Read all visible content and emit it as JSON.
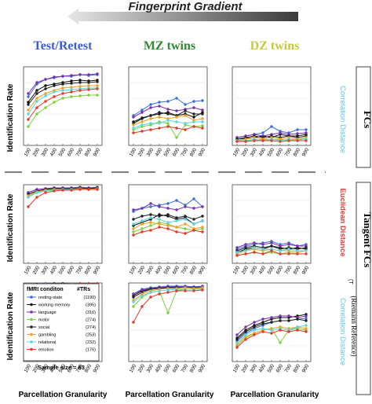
{
  "header": {
    "gradient_title": "Fingerprint Gradient",
    "gradient_color_dark": "#3a3a3a",
    "gradient_color_light": "#e6e6e6"
  },
  "column_titles": [
    {
      "text": "Test/Retest",
      "color": "#3b5bd6"
    },
    {
      "text": "MZ twins",
      "color": "#2f8a2f"
    },
    {
      "text": "DZ twins",
      "color": "#c8c83a"
    }
  ],
  "row_labels": {
    "ylabel": "Identification Rate",
    "xlabel": "Parcellation Granularity"
  },
  "side_labels": {
    "fcs": "FCs",
    "tangent_fcs": "Tangent FCs",
    "riemann": "(Riemann Reference)",
    "correlation_distance_1": "Correlation Distance",
    "correlation_distance_1_color": "#5bc8e8",
    "euclidean_distance": "Euclidean Distance",
    "euclidean_sub": "(T",
    "euclidean_color": "#e23c3c",
    "correlation_distance_3": "Correlation Distance",
    "correlation_distance_3_color": "#5bc8e8"
  },
  "legend": {
    "title_left": "fMRI conditon",
    "title_right": "#TRs",
    "footer": "Sample size = 63",
    "items": [
      {
        "label": "resting-state",
        "trs": "(1190)",
        "color": "#3a6fd8",
        "marker": "circle"
      },
      {
        "label": "working memory",
        "trs": "(395)",
        "color": "#111111",
        "marker": "circle"
      },
      {
        "label": "language",
        "trs": "(316)",
        "color": "#7a2fb0",
        "marker": "circle"
      },
      {
        "label": "motor",
        "trs": "(274)",
        "color": "#7bd13a",
        "marker": "circle"
      },
      {
        "label": "social",
        "trs": "(274)",
        "color": "#222222",
        "marker": "circle"
      },
      {
        "label": "gambling",
        "trs": "(253)",
        "color": "#f0a020",
        "marker": "circle"
      },
      {
        "label": "relational",
        "trs": "(232)",
        "color": "#5bd3e0",
        "marker": "circle"
      },
      {
        "label": "emotion",
        "trs": "(176)",
        "color": "#e03a2a",
        "marker": "circle"
      }
    ]
  },
  "chart_data": {
    "type": "line",
    "x": [
      100,
      200,
      300,
      400,
      500,
      600,
      700,
      800,
      900
    ],
    "ylim": [
      0,
      1
    ],
    "panels": [
      {
        "row": 0,
        "col": 0,
        "series": [
          [
            0.62,
            0.78,
            0.84,
            0.86,
            0.88,
            0.88,
            0.9,
            0.89,
            0.9
          ],
          [
            0.55,
            0.7,
            0.76,
            0.78,
            0.8,
            0.82,
            0.83,
            0.82,
            0.83
          ],
          [
            0.66,
            0.8,
            0.84,
            0.87,
            0.88,
            0.89,
            0.9,
            0.9,
            0.91
          ],
          [
            0.24,
            0.4,
            0.48,
            0.55,
            0.6,
            0.62,
            0.63,
            0.64,
            0.64
          ],
          [
            0.52,
            0.66,
            0.72,
            0.76,
            0.78,
            0.79,
            0.8,
            0.8,
            0.81
          ],
          [
            0.45,
            0.6,
            0.66,
            0.7,
            0.73,
            0.74,
            0.75,
            0.76,
            0.76
          ],
          [
            0.4,
            0.56,
            0.63,
            0.68,
            0.7,
            0.71,
            0.72,
            0.73,
            0.73
          ],
          [
            0.33,
            0.48,
            0.56,
            0.62,
            0.66,
            0.68,
            0.7,
            0.71,
            0.72
          ]
        ]
      },
      {
        "row": 0,
        "col": 1,
        "series": [
          [
            0.38,
            0.45,
            0.52,
            0.55,
            0.56,
            0.6,
            0.52,
            0.56,
            0.57
          ],
          [
            0.3,
            0.35,
            0.38,
            0.4,
            0.42,
            0.38,
            0.4,
            0.36,
            0.42
          ],
          [
            0.36,
            0.42,
            0.48,
            0.5,
            0.46,
            0.44,
            0.46,
            0.48,
            0.45
          ],
          [
            0.2,
            0.24,
            0.26,
            0.3,
            0.28,
            0.1,
            0.26,
            0.24,
            0.25
          ],
          [
            0.28,
            0.34,
            0.38,
            0.42,
            0.4,
            0.38,
            0.44,
            0.4,
            0.4
          ],
          [
            0.26,
            0.3,
            0.34,
            0.36,
            0.34,
            0.36,
            0.38,
            0.32,
            0.34
          ],
          [
            0.22,
            0.26,
            0.28,
            0.28,
            0.32,
            0.3,
            0.28,
            0.3,
            0.3
          ],
          [
            0.16,
            0.18,
            0.2,
            0.22,
            0.24,
            0.22,
            0.2,
            0.24,
            0.22
          ]
        ]
      },
      {
        "row": 0,
        "col": 2,
        "series": [
          [
            0.1,
            0.12,
            0.14,
            0.16,
            0.24,
            0.18,
            0.16,
            0.2,
            0.2
          ],
          [
            0.08,
            0.09,
            0.1,
            0.12,
            0.1,
            0.14,
            0.12,
            0.12,
            0.14
          ],
          [
            0.1,
            0.12,
            0.14,
            0.12,
            0.14,
            0.16,
            0.14,
            0.15,
            0.16
          ],
          [
            0.05,
            0.06,
            0.06,
            0.08,
            0.07,
            0.08,
            0.06,
            0.08,
            0.08
          ],
          [
            0.08,
            0.1,
            0.12,
            0.1,
            0.12,
            0.1,
            0.12,
            0.1,
            0.12
          ],
          [
            0.06,
            0.08,
            0.1,
            0.08,
            0.1,
            0.08,
            0.1,
            0.08,
            0.1
          ],
          [
            0.06,
            0.06,
            0.08,
            0.06,
            0.08,
            0.06,
            0.08,
            0.07,
            0.08
          ],
          [
            0.05,
            0.05,
            0.06,
            0.06,
            0.06,
            0.05,
            0.06,
            0.06,
            0.06
          ]
        ]
      },
      {
        "row": 1,
        "col": 0,
        "series": [
          [
            0.9,
            0.94,
            0.95,
            0.96,
            0.96,
            0.96,
            0.97,
            0.96,
            0.97
          ],
          [
            0.88,
            0.92,
            0.94,
            0.95,
            0.95,
            0.95,
            0.96,
            0.95,
            0.96
          ],
          [
            0.9,
            0.94,
            0.95,
            0.96,
            0.96,
            0.96,
            0.96,
            0.96,
            0.96
          ],
          [
            0.86,
            0.9,
            0.92,
            0.94,
            0.94,
            0.94,
            0.95,
            0.94,
            0.95
          ],
          [
            0.88,
            0.92,
            0.94,
            0.95,
            0.95,
            0.95,
            0.96,
            0.95,
            0.96
          ],
          [
            0.86,
            0.91,
            0.93,
            0.94,
            0.94,
            0.94,
            0.95,
            0.94,
            0.95
          ],
          [
            0.84,
            0.9,
            0.92,
            0.93,
            0.94,
            0.94,
            0.94,
            0.94,
            0.94
          ],
          [
            0.72,
            0.84,
            0.9,
            0.92,
            0.93,
            0.93,
            0.94,
            0.94,
            0.94
          ]
        ]
      },
      {
        "row": 1,
        "col": 1,
        "series": [
          [
            0.66,
            0.7,
            0.72,
            0.74,
            0.76,
            0.8,
            0.74,
            0.82,
            0.72
          ],
          [
            0.48,
            0.52,
            0.56,
            0.62,
            0.6,
            0.56,
            0.58,
            0.5,
            0.54
          ],
          [
            0.68,
            0.7,
            0.76,
            0.72,
            0.7,
            0.68,
            0.72,
            0.7,
            0.72
          ],
          [
            0.4,
            0.44,
            0.48,
            0.52,
            0.5,
            0.46,
            0.44,
            0.42,
            0.44
          ],
          [
            0.56,
            0.6,
            0.62,
            0.6,
            0.62,
            0.58,
            0.6,
            0.56,
            0.6
          ],
          [
            0.44,
            0.5,
            0.52,
            0.5,
            0.48,
            0.46,
            0.5,
            0.44,
            0.46
          ],
          [
            0.5,
            0.54,
            0.58,
            0.56,
            0.52,
            0.54,
            0.56,
            0.5,
            0.54
          ],
          [
            0.36,
            0.4,
            0.42,
            0.46,
            0.44,
            0.4,
            0.38,
            0.42,
            0.4
          ]
        ]
      },
      {
        "row": 1,
        "col": 2,
        "series": [
          [
            0.18,
            0.22,
            0.24,
            0.26,
            0.28,
            0.24,
            0.26,
            0.22,
            0.24
          ],
          [
            0.14,
            0.18,
            0.2,
            0.18,
            0.22,
            0.2,
            0.18,
            0.2,
            0.18
          ],
          [
            0.2,
            0.24,
            0.26,
            0.24,
            0.26,
            0.22,
            0.24,
            0.22,
            0.22
          ],
          [
            0.1,
            0.12,
            0.14,
            0.12,
            0.14,
            0.12,
            0.14,
            0.12,
            0.12
          ],
          [
            0.16,
            0.2,
            0.22,
            0.2,
            0.22,
            0.18,
            0.2,
            0.18,
            0.2
          ],
          [
            0.12,
            0.16,
            0.18,
            0.16,
            0.18,
            0.16,
            0.16,
            0.14,
            0.16
          ],
          [
            0.14,
            0.16,
            0.2,
            0.18,
            0.18,
            0.16,
            0.18,
            0.16,
            0.16
          ],
          [
            0.1,
            0.12,
            0.14,
            0.12,
            0.16,
            0.12,
            0.12,
            0.12,
            0.12
          ]
        ]
      },
      {
        "row": 2,
        "col": 0,
        "series": [
          [
            0.97,
            0.98,
            0.99,
            0.99,
            0.99,
            0.99,
            0.99,
            0.99,
            0.99
          ],
          [
            0.96,
            0.98,
            0.98,
            0.99,
            0.99,
            0.99,
            0.99,
            0.99,
            0.99
          ],
          [
            0.97,
            0.98,
            0.99,
            0.99,
            0.99,
            0.99,
            0.99,
            0.99,
            0.99
          ],
          [
            0.95,
            0.97,
            0.98,
            0.98,
            0.99,
            0.99,
            0.99,
            0.99,
            0.99
          ],
          [
            0.96,
            0.98,
            0.98,
            0.99,
            0.99,
            0.99,
            0.99,
            0.99,
            0.99
          ],
          [
            0.95,
            0.97,
            0.98,
            0.98,
            0.98,
            0.99,
            0.99,
            0.99,
            0.99
          ],
          [
            0.95,
            0.97,
            0.98,
            0.98,
            0.98,
            0.99,
            0.99,
            0.99,
            0.99
          ],
          [
            0.92,
            0.96,
            0.97,
            0.98,
            0.98,
            0.98,
            0.99,
            0.99,
            0.99
          ]
        ]
      },
      {
        "row": 2,
        "col": 1,
        "series": [
          [
            0.86,
            0.92,
            0.94,
            0.95,
            0.96,
            0.96,
            0.96,
            0.95,
            0.96
          ],
          [
            0.84,
            0.9,
            0.92,
            0.94,
            0.94,
            0.95,
            0.95,
            0.94,
            0.95
          ],
          [
            0.86,
            0.91,
            0.93,
            0.94,
            0.95,
            0.95,
            0.95,
            0.95,
            0.95
          ],
          [
            0.7,
            0.82,
            0.88,
            0.9,
            0.62,
            0.9,
            0.92,
            0.92,
            0.93
          ],
          [
            0.82,
            0.88,
            0.92,
            0.93,
            0.94,
            0.94,
            0.94,
            0.94,
            0.94
          ],
          [
            0.78,
            0.86,
            0.9,
            0.92,
            0.93,
            0.93,
            0.94,
            0.93,
            0.94
          ],
          [
            0.76,
            0.84,
            0.88,
            0.9,
            0.91,
            0.92,
            0.92,
            0.92,
            0.92
          ],
          [
            0.5,
            0.7,
            0.82,
            0.86,
            0.88,
            0.9,
            0.9,
            0.9,
            0.91
          ]
        ]
      },
      {
        "row": 2,
        "col": 2,
        "series": [
          [
            0.26,
            0.36,
            0.42,
            0.46,
            0.5,
            0.52,
            0.52,
            0.54,
            0.55
          ],
          [
            0.3,
            0.4,
            0.46,
            0.5,
            0.54,
            0.56,
            0.56,
            0.58,
            0.6
          ],
          [
            0.34,
            0.44,
            0.5,
            0.54,
            0.56,
            0.58,
            0.58,
            0.56,
            0.58
          ],
          [
            0.2,
            0.3,
            0.36,
            0.4,
            0.42,
            0.24,
            0.4,
            0.42,
            0.4
          ],
          [
            0.28,
            0.38,
            0.44,
            0.48,
            0.5,
            0.52,
            0.52,
            0.54,
            0.52
          ],
          [
            0.22,
            0.32,
            0.36,
            0.4,
            0.42,
            0.44,
            0.42,
            0.44,
            0.42
          ],
          [
            0.24,
            0.34,
            0.4,
            0.42,
            0.4,
            0.42,
            0.4,
            0.44,
            0.46
          ],
          [
            0.18,
            0.28,
            0.34,
            0.38,
            0.36,
            0.4,
            0.38,
            0.4,
            0.38
          ]
        ]
      }
    ]
  }
}
